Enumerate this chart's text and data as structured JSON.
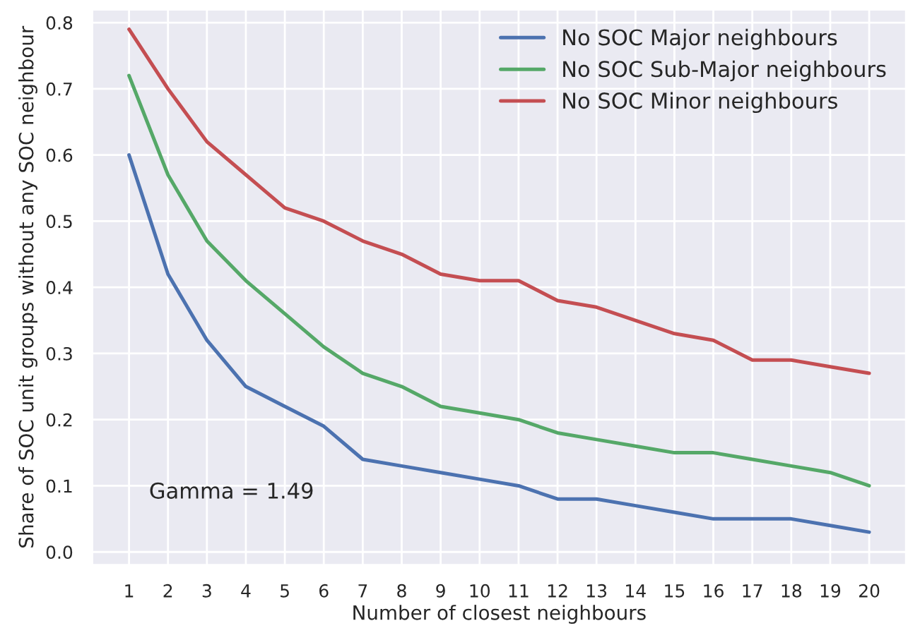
{
  "chart_data": {
    "type": "line",
    "xlabel": "Number of closest neighbours",
    "ylabel": "Share of SOC unit groups without any SOC neighbour",
    "x": [
      1,
      2,
      3,
      4,
      5,
      6,
      7,
      8,
      9,
      10,
      11,
      12,
      13,
      14,
      15,
      16,
      17,
      18,
      19,
      20
    ],
    "series": [
      {
        "name": "No SOC Major neighbours",
        "color": "#4c72b0",
        "values": [
          0.6,
          0.42,
          0.32,
          0.25,
          0.22,
          0.19,
          0.14,
          0.13,
          0.12,
          0.11,
          0.1,
          0.08,
          0.08,
          0.07,
          0.06,
          0.05,
          0.05,
          0.05,
          0.04,
          0.03
        ]
      },
      {
        "name": "No SOC Sub-Major neighbours",
        "color": "#55a868",
        "values": [
          0.72,
          0.57,
          0.47,
          0.41,
          0.36,
          0.31,
          0.27,
          0.25,
          0.22,
          0.21,
          0.2,
          0.18,
          0.17,
          0.16,
          0.15,
          0.15,
          0.14,
          0.13,
          0.12,
          0.1
        ]
      },
      {
        "name": "No SOC Minor neighbours",
        "color": "#c44e52",
        "values": [
          0.79,
          0.7,
          0.62,
          0.57,
          0.52,
          0.5,
          0.47,
          0.45,
          0.42,
          0.41,
          0.41,
          0.38,
          0.37,
          0.35,
          0.33,
          0.32,
          0.29,
          0.29,
          0.28,
          0.27
        ]
      }
    ],
    "xlim": [
      0.05,
      20.95
    ],
    "xticks": [
      1,
      2,
      3,
      4,
      5,
      6,
      7,
      8,
      9,
      10,
      11,
      12,
      13,
      14,
      15,
      16,
      17,
      18,
      19,
      20
    ],
    "ylim": [
      -0.02,
      0.82
    ],
    "yticks": [
      {
        "value": 0.0,
        "label": "0.0"
      },
      {
        "value": 0.1,
        "label": "0.1"
      },
      {
        "value": 0.2,
        "label": "0.2"
      },
      {
        "value": 0.3,
        "label": "0.3"
      },
      {
        "value": 0.4,
        "label": "0.4"
      },
      {
        "value": 0.5,
        "label": "0.5"
      },
      {
        "value": 0.6,
        "label": "0.6"
      },
      {
        "value": 0.7,
        "label": "0.7"
      },
      {
        "value": 0.8,
        "label": "0.8"
      }
    ],
    "annotations": [
      "Gamma = 1.49"
    ],
    "grid": true,
    "legend": "top right",
    "marker": "none",
    "line_style": "solid"
  }
}
